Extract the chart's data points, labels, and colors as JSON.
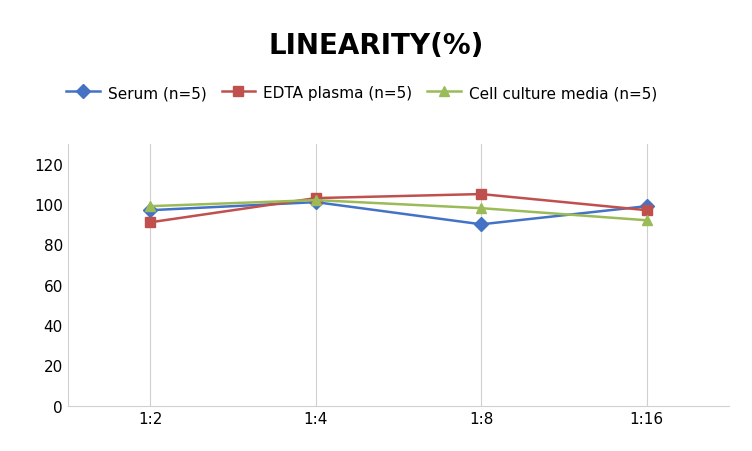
{
  "title": "LINEARITY(%)",
  "x_labels": [
    "1:2",
    "1:4",
    "1:8",
    "1:16"
  ],
  "series": [
    {
      "label": "Serum (n=5)",
      "values": [
        97,
        101,
        90,
        99
      ],
      "color": "#4472C4",
      "marker": "D",
      "markersize": 7
    },
    {
      "label": "EDTA plasma (n=5)",
      "values": [
        91,
        103,
        105,
        97
      ],
      "color": "#C0504D",
      "marker": "s",
      "markersize": 7
    },
    {
      "label": "Cell culture media (n=5)",
      "values": [
        99,
        102,
        98,
        92
      ],
      "color": "#9BBB59",
      "marker": "^",
      "markersize": 7
    }
  ],
  "ylim": [
    0,
    130
  ],
  "yticks": [
    0,
    20,
    40,
    60,
    80,
    100,
    120
  ],
  "grid_color": "#D0D0D0",
  "background_color": "#FFFFFF",
  "title_fontsize": 20,
  "legend_fontsize": 11,
  "tick_fontsize": 11
}
